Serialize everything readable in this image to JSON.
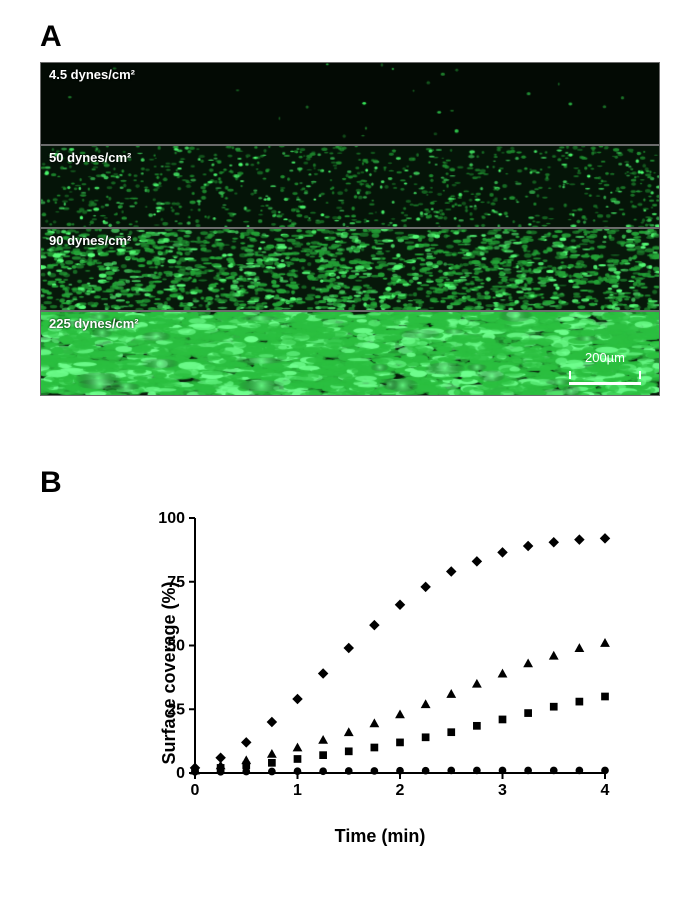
{
  "panelA": {
    "label": "A",
    "rows": [
      {
        "caption": "4.5 dynes/cm²",
        "density": 0.004,
        "streak": 0.05,
        "size": 1.1,
        "bg": "#030a04",
        "speck": "#1d792a",
        "bright": "#3cff62"
      },
      {
        "caption": "50 dynes/cm²",
        "density": 0.15,
        "streak": 0.25,
        "size": 1.1,
        "bg": "#051408",
        "speck": "#1e8a2e",
        "bright": "#4dff70"
      },
      {
        "caption": "90 dynes/cm²",
        "density": 0.3,
        "streak": 0.45,
        "size": 1.3,
        "bg": "#07180a",
        "speck": "#24a337",
        "bright": "#57ff78"
      },
      {
        "caption": "225 dynes/cm²",
        "density": 0.55,
        "streak": 0.9,
        "size": 2.2,
        "bg": "#071c0a",
        "speck": "#2bbf40",
        "bright": "#6fff8e"
      }
    ],
    "scale_bar": {
      "label": "200µm",
      "px": 72
    },
    "border_color": "#6b6b6b"
  },
  "panelB": {
    "label": "B",
    "chart": {
      "type": "scatter",
      "xlabel": "Time (min)",
      "ylabel": "Surface coverage (%)",
      "xlim": [
        0,
        4
      ],
      "xtick_step": 1,
      "ylim": [
        0,
        100
      ],
      "ytick_step": 25,
      "background_color": "#ffffff",
      "axis_color": "#000000",
      "tick_fontsize": 16,
      "label_fontsize": 18,
      "marker_size": 7,
      "series": [
        {
          "name": "4.5 dynes/cm²",
          "marker": "circle",
          "color": "#000000",
          "x": [
            0,
            0.25,
            0.5,
            0.75,
            1,
            1.25,
            1.5,
            1.75,
            2,
            2.25,
            2.5,
            2.75,
            3,
            3.25,
            3.5,
            3.75,
            4
          ],
          "y": [
            0.5,
            0.5,
            0.6,
            0.6,
            0.7,
            0.7,
            0.8,
            0.8,
            0.9,
            0.9,
            1,
            1,
            1,
            1,
            1,
            1,
            1
          ]
        },
        {
          "name": "50 dynes/cm²",
          "marker": "square",
          "color": "#000000",
          "x": [
            0,
            0.25,
            0.5,
            0.75,
            1,
            1.25,
            1.5,
            1.75,
            2,
            2.25,
            2.5,
            2.75,
            3,
            3.25,
            3.5,
            3.75,
            4
          ],
          "y": [
            1,
            2,
            3,
            4,
            5.5,
            7,
            8.5,
            10,
            12,
            14,
            16,
            18.5,
            21,
            23.5,
            26,
            28,
            30
          ]
        },
        {
          "name": "90 dynes/cm²",
          "marker": "triangle",
          "color": "#000000",
          "x": [
            0,
            0.25,
            0.5,
            0.75,
            1,
            1.25,
            1.5,
            1.75,
            2,
            2.25,
            2.5,
            2.75,
            3,
            3.25,
            3.5,
            3.75,
            4
          ],
          "y": [
            1,
            3,
            5,
            7.5,
            10,
            13,
            16,
            19.5,
            23,
            27,
            31,
            35,
            39,
            43,
            46,
            49,
            51
          ]
        },
        {
          "name": "225 dynes/cm²",
          "marker": "diamond",
          "color": "#000000",
          "x": [
            0,
            0.25,
            0.5,
            0.75,
            1,
            1.25,
            1.5,
            1.75,
            2,
            2.25,
            2.5,
            2.75,
            3,
            3.25,
            3.5,
            3.75,
            4
          ],
          "y": [
            2,
            6,
            12,
            20,
            29,
            39,
            49,
            58,
            66,
            73,
            79,
            83,
            86.5,
            89,
            90.5,
            91.5,
            92
          ]
        }
      ]
    }
  }
}
